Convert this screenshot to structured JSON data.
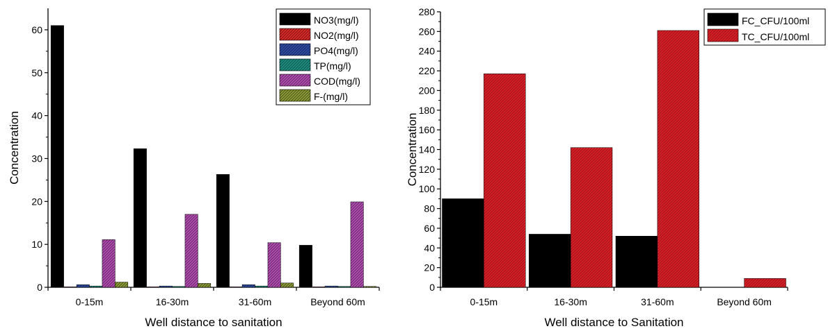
{
  "colors": {
    "NO3": "#000000",
    "NO2": "#d42a2a",
    "PO4": "#2f4a9c",
    "TP": "#1f8b7e",
    "COD": "#b04fb0",
    "F": "#8d9a3a",
    "FC": "#000000",
    "TC": "#d61f26"
  },
  "chart_data": [
    {
      "type": "bar",
      "xlabel": "Well distance to sanitation",
      "ylabel": "Concentration",
      "categories": [
        "0-15m",
        "16-30m",
        "31-60m",
        "Beyond 60m"
      ],
      "ylim": [
        0,
        65
      ],
      "yticks": [
        0,
        10,
        20,
        30,
        40,
        50,
        60
      ],
      "legend_position": "top-right",
      "series": [
        {
          "name": "NO3(mg/l)",
          "key": "NO3",
          "values": [
            61.0,
            32.3,
            26.3,
            9.8
          ]
        },
        {
          "name": "NO2(mg/l)",
          "key": "NO2",
          "values": [
            0.1,
            0.1,
            0.1,
            0.1
          ]
        },
        {
          "name": "PO4(mg/l)",
          "key": "PO4",
          "values": [
            0.6,
            0.3,
            0.6,
            0.3
          ]
        },
        {
          "name": "TP(mg/l)",
          "key": "TP",
          "values": [
            0.3,
            0.2,
            0.3,
            0.2
          ]
        },
        {
          "name": "COD(mg/l)",
          "key": "COD",
          "values": [
            11.1,
            17.0,
            10.4,
            19.9
          ]
        },
        {
          "name": "F-(mg/l)",
          "key": "F",
          "values": [
            1.2,
            0.9,
            1.0,
            0.2
          ]
        }
      ]
    },
    {
      "type": "bar",
      "xlabel": "Well distance to Sanitation",
      "ylabel": "Concentration",
      "categories": [
        "0-15m",
        "16-30m",
        "31-60m",
        "Beyond  60m"
      ],
      "ylim": [
        0,
        280
      ],
      "yticks": [
        0,
        20,
        40,
        60,
        80,
        100,
        120,
        140,
        160,
        180,
        200,
        220,
        240,
        260,
        280
      ],
      "legend_position": "top-right",
      "series": [
        {
          "name": "FC_CFU/100ml",
          "key": "FC",
          "values": [
            90,
            54,
            52,
            0
          ]
        },
        {
          "name": "TC_CFU/100ml",
          "key": "TC",
          "values": [
            217,
            142,
            261,
            9
          ]
        }
      ]
    }
  ]
}
